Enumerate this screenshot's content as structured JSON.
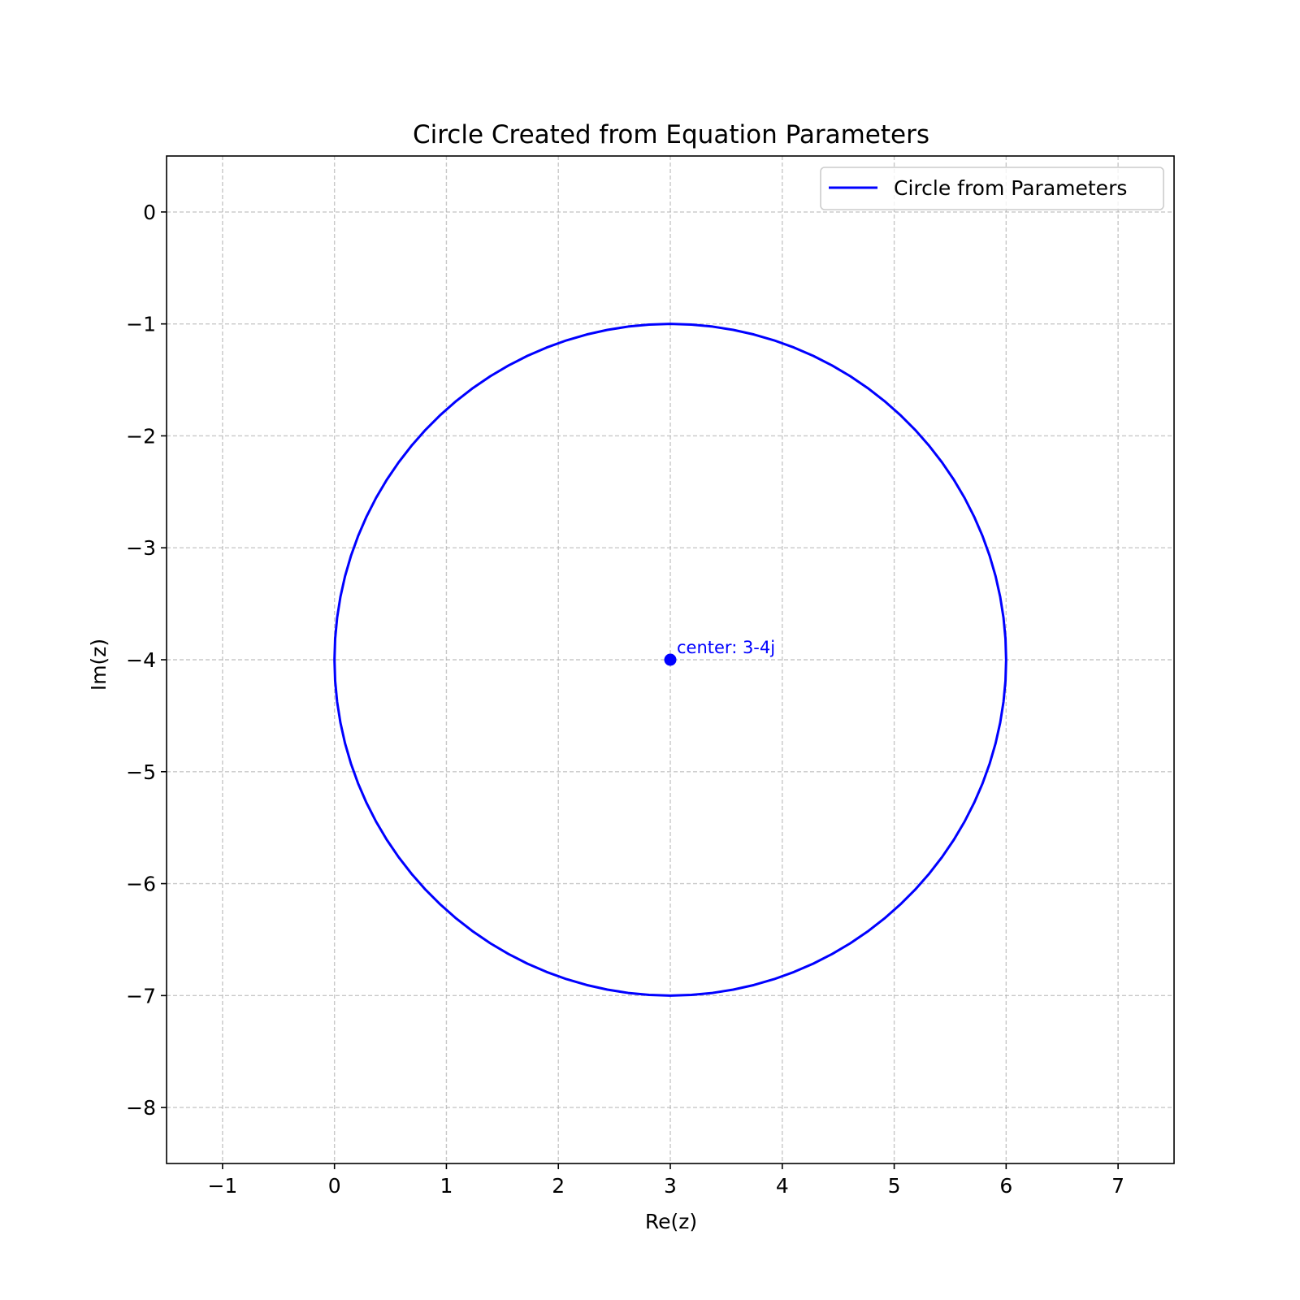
{
  "chart_data": {
    "type": "line",
    "title": "Circle Created from Equation Parameters",
    "xlabel": "Re(z)",
    "ylabel": "Im(z)",
    "xlim": [
      -1.5,
      7.5
    ],
    "ylim": [
      -8.5,
      0.5
    ],
    "xticks": [
      -1,
      0,
      1,
      2,
      3,
      4,
      5,
      6,
      7
    ],
    "xtick_labels": [
      "−1",
      "0",
      "1",
      "2",
      "3",
      "4",
      "5",
      "6",
      "7"
    ],
    "yticks": [
      0,
      -1,
      -2,
      -3,
      -4,
      -5,
      -6,
      -7,
      -8
    ],
    "ytick_labels": [
      "0",
      "−1",
      "−2",
      "−3",
      "−4",
      "−5",
      "−6",
      "−7",
      "−8"
    ],
    "grid": true,
    "legend_position": "top-right",
    "series": [
      {
        "name": "Circle from Parameters",
        "color": "#0000ff",
        "shape": "circle",
        "center": [
          3,
          -4
        ],
        "radius": 3,
        "points": 100
      }
    ],
    "center_point": {
      "x": 3,
      "y": -4,
      "color": "#0000ff",
      "label": "center: 3-4j"
    }
  }
}
